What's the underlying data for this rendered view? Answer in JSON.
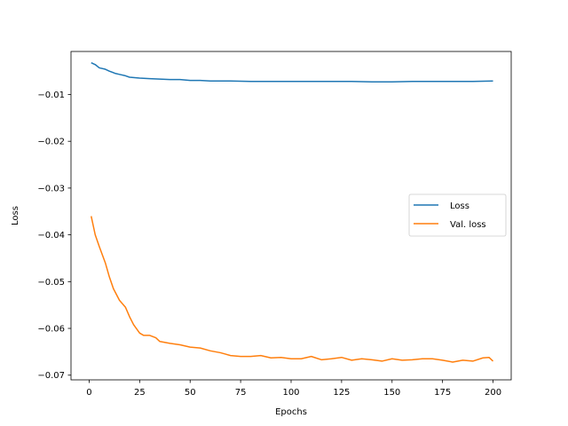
{
  "chart_data": {
    "type": "line",
    "title": "",
    "xlabel": "Epochs",
    "ylabel": "Loss",
    "xlim": [
      -9,
      209
    ],
    "ylim": [
      -0.071,
      -0.0008
    ],
    "xticks": [
      0,
      25,
      50,
      75,
      100,
      125,
      150,
      175,
      200
    ],
    "xtick_labels": [
      "0",
      "25",
      "50",
      "75",
      "100",
      "125",
      "150",
      "175",
      "200"
    ],
    "yticks": [
      -0.01,
      -0.02,
      -0.03,
      -0.04,
      -0.05,
      -0.06,
      -0.07
    ],
    "ytick_labels": [
      "−0.01",
      "−0.02",
      "−0.03",
      "−0.04",
      "−0.05",
      "−0.06",
      "−0.07"
    ],
    "grid": false,
    "legend_position": "center-right",
    "series": [
      {
        "name": "Loss",
        "color": "#1f77b4",
        "x": [
          1,
          3,
          5,
          8,
          10,
          13,
          15,
          18,
          20,
          25,
          30,
          35,
          40,
          45,
          50,
          55,
          60,
          70,
          80,
          90,
          100,
          110,
          120,
          130,
          140,
          150,
          160,
          170,
          180,
          190,
          200
        ],
        "y": [
          -0.0032,
          -0.0036,
          -0.0043,
          -0.0046,
          -0.005,
          -0.0055,
          -0.0057,
          -0.006,
          -0.0063,
          -0.0065,
          -0.0066,
          -0.0067,
          -0.0068,
          -0.0068,
          -0.007,
          -0.007,
          -0.0071,
          -0.0071,
          -0.0072,
          -0.0072,
          -0.0072,
          -0.0072,
          -0.0072,
          -0.0072,
          -0.0073,
          -0.0073,
          -0.0072,
          -0.0072,
          -0.0072,
          -0.0072,
          -0.0071
        ]
      },
      {
        "name": "Val. loss",
        "color": "#ff7f0e",
        "x": [
          1,
          3,
          5,
          8,
          10,
          12,
          15,
          18,
          20,
          22,
          25,
          27,
          30,
          33,
          35,
          40,
          45,
          50,
          55,
          60,
          65,
          70,
          75,
          80,
          85,
          90,
          95,
          100,
          105,
          110,
          115,
          120,
          125,
          130,
          135,
          140,
          145,
          150,
          155,
          160,
          165,
          170,
          175,
          180,
          185,
          190,
          195,
          198,
          200
        ],
        "y": [
          -0.036,
          -0.04,
          -0.0425,
          -0.046,
          -0.049,
          -0.0515,
          -0.054,
          -0.0555,
          -0.0575,
          -0.0592,
          -0.061,
          -0.0615,
          -0.0615,
          -0.062,
          -0.0628,
          -0.0632,
          -0.0635,
          -0.064,
          -0.0642,
          -0.0648,
          -0.0652,
          -0.0658,
          -0.066,
          -0.066,
          -0.0658,
          -0.0663,
          -0.0662,
          -0.0665,
          -0.0665,
          -0.066,
          -0.0667,
          -0.0665,
          -0.0662,
          -0.0668,
          -0.0665,
          -0.0667,
          -0.067,
          -0.0665,
          -0.0668,
          -0.0667,
          -0.0665,
          -0.0665,
          -0.0668,
          -0.0672,
          -0.0668,
          -0.067,
          -0.0663,
          -0.0662,
          -0.067
        ]
      }
    ]
  }
}
